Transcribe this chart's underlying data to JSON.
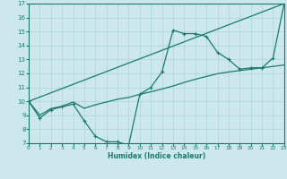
{
  "xlabel": "Humidex (Indice chaleur)",
  "bg_color": "#cce8ec",
  "grid_color": "#aad4d8",
  "line_color": "#1a7a6e",
  "xlim": [
    0,
    23
  ],
  "ylim": [
    7,
    17
  ],
  "xticks": [
    0,
    1,
    2,
    3,
    4,
    5,
    6,
    7,
    8,
    9,
    10,
    11,
    12,
    13,
    14,
    15,
    16,
    17,
    18,
    19,
    20,
    21,
    22,
    23
  ],
  "yticks": [
    7,
    8,
    9,
    10,
    11,
    12,
    13,
    14,
    15,
    16,
    17
  ],
  "line1_x": [
    0,
    1,
    2,
    3,
    4,
    5,
    6,
    7,
    8,
    9,
    10,
    11,
    12,
    13,
    14,
    15,
    16,
    17,
    18,
    19,
    20,
    21,
    22,
    23
  ],
  "line1_y": [
    10.0,
    8.8,
    9.4,
    9.6,
    9.8,
    8.6,
    7.5,
    7.1,
    7.1,
    6.85,
    10.5,
    11.0,
    12.1,
    15.1,
    14.85,
    14.85,
    14.65,
    13.5,
    13.0,
    12.3,
    12.4,
    12.4,
    13.1,
    17.0
  ],
  "line2_x": [
    0,
    1,
    2,
    3,
    4,
    5,
    6,
    7,
    8,
    9,
    10,
    11,
    12,
    13,
    14,
    15,
    16,
    17,
    18,
    19,
    20,
    21,
    22,
    23
  ],
  "line2_y": [
    10.0,
    9.0,
    9.48,
    9.65,
    9.95,
    9.5,
    9.75,
    9.95,
    10.15,
    10.28,
    10.5,
    10.68,
    10.88,
    11.1,
    11.35,
    11.58,
    11.78,
    11.98,
    12.1,
    12.2,
    12.3,
    12.4,
    12.5,
    12.6
  ],
  "line3_x": [
    0,
    23
  ],
  "line3_y": [
    10.0,
    17.0
  ]
}
